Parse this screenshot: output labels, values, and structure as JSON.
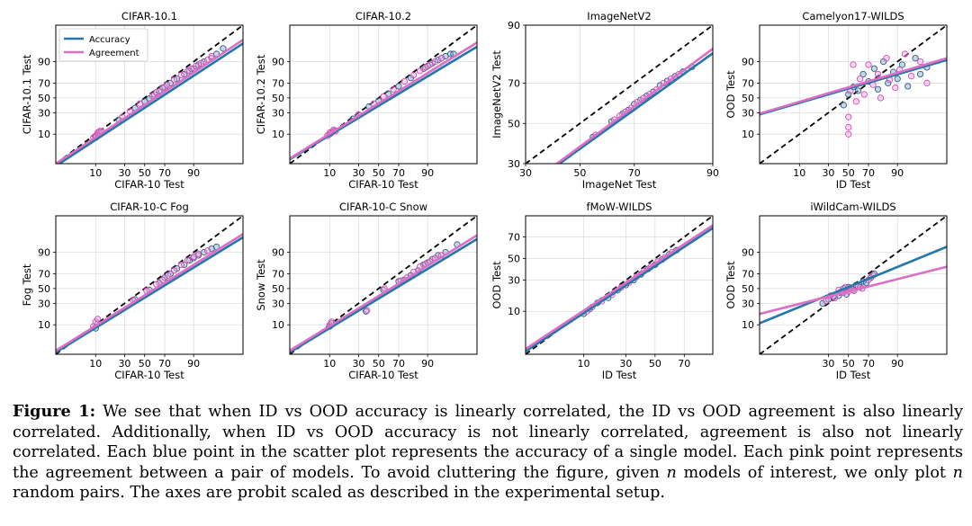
{
  "legend": {
    "accuracy": "Accuracy",
    "agreement": "Agreement"
  },
  "colors": {
    "accuracy": "#2477ab",
    "agreement": "#db6fc4",
    "diag": "#000000",
    "grid": "#dddddd",
    "point_edge_acc": "#2a4d6e",
    "point_edge_agr": "#d23ab5"
  },
  "caption": {
    "label": "Figure 1:",
    "t1": " We see that when ID vs OOD accuracy is linearly correlated, the ID vs OOD agreement is also linearly correlated. Additionally, when ID vs OOD accuracy is not linearly correlated, agreement is also not linearly correlated. Each blue point in the scatter plot represents the accuracy of a single model. Each pink point represents the agreement between a pair of models. To avoid cluttering the figure, given ",
    "n1": "n",
    "t2": " models of interest, we only plot ",
    "n2": "n",
    "t3": " random pairs. The axes are probit scaled as described in the experimental setup."
  },
  "chart_data": [
    {
      "title": "CIFAR-10.1",
      "type": "scatter",
      "xlabel": "CIFAR-10 Test",
      "ylabel": "CIFAR-10.1 Test",
      "xlim": [
        1,
        99.5
      ],
      "ylim": [
        1,
        99.5
      ],
      "xticks": [
        10,
        30,
        50,
        70,
        90
      ],
      "yticks": [
        10,
        30,
        50,
        70,
        90
      ],
      "legend": true,
      "diag": true,
      "accuracy_fit": [
        [
          1,
          0.8
        ],
        [
          99.5,
          97.3
        ]
      ],
      "agreement_fit": [
        [
          1,
          1.0
        ],
        [
          99.5,
          98.0
        ]
      ],
      "accuracy_points": [
        [
          10,
          8
        ],
        [
          11,
          10
        ],
        [
          12,
          11
        ],
        [
          25,
          22
        ],
        [
          40,
          36
        ],
        [
          50,
          45
        ],
        [
          55,
          49
        ],
        [
          60,
          55
        ],
        [
          65,
          60
        ],
        [
          70,
          65
        ],
        [
          75,
          70
        ],
        [
          80,
          75
        ],
        [
          85,
          80
        ],
        [
          88,
          83
        ],
        [
          90,
          85
        ],
        [
          92,
          88
        ],
        [
          94,
          90
        ],
        [
          96,
          92
        ],
        [
          97,
          94
        ],
        [
          98,
          96
        ]
      ],
      "agreement_points": [
        [
          9,
          8
        ],
        [
          10,
          9
        ],
        [
          11,
          11
        ],
        [
          12,
          12
        ],
        [
          13,
          12
        ],
        [
          28,
          25
        ],
        [
          35,
          32
        ],
        [
          45,
          42
        ],
        [
          58,
          53
        ],
        [
          62,
          58
        ],
        [
          68,
          64
        ],
        [
          72,
          68
        ],
        [
          78,
          74
        ],
        [
          83,
          79
        ],
        [
          87,
          83
        ],
        [
          89,
          85
        ],
        [
          91,
          87
        ],
        [
          93,
          89
        ],
        [
          95,
          91
        ],
        [
          96,
          93
        ]
      ]
    },
    {
      "title": "CIFAR-10.2",
      "type": "scatter",
      "xlabel": "CIFAR-10 Test",
      "ylabel": "CIFAR-10.2 Test",
      "xlim": [
        1,
        99.5
      ],
      "ylim": [
        1,
        99.5
      ],
      "xticks": [
        10,
        30,
        50,
        70,
        90
      ],
      "yticks": [
        10,
        30,
        50,
        70,
        90
      ],
      "legend": false,
      "diag": true,
      "accuracy_fit": [
        [
          1,
          1.5
        ],
        [
          99.5,
          96.5
        ]
      ],
      "agreement_fit": [
        [
          1,
          1.6
        ],
        [
          99.5,
          97.5
        ]
      ],
      "accuracy_points": [
        [
          10,
          10
        ],
        [
          12,
          12
        ],
        [
          25,
          23
        ],
        [
          40,
          38
        ],
        [
          50,
          46
        ],
        [
          60,
          56
        ],
        [
          70,
          66
        ],
        [
          80,
          76
        ],
        [
          88,
          85
        ],
        [
          90,
          87
        ],
        [
          92,
          89
        ],
        [
          94,
          91
        ],
        [
          95,
          92
        ],
        [
          96,
          93
        ],
        [
          97,
          94
        ],
        [
          97.5,
          94
        ]
      ],
      "agreement_points": [
        [
          9,
          9
        ],
        [
          10,
          11
        ],
        [
          11,
          11
        ],
        [
          12,
          13
        ],
        [
          13,
          12
        ],
        [
          30,
          28
        ],
        [
          45,
          42
        ],
        [
          55,
          52
        ],
        [
          65,
          62
        ],
        [
          75,
          72
        ],
        [
          82,
          79
        ],
        [
          86,
          83
        ],
        [
          89,
          86
        ],
        [
          91,
          88
        ],
        [
          93,
          90
        ],
        [
          95,
          92
        ]
      ]
    },
    {
      "title": "ImageNetV2",
      "type": "scatter",
      "xlabel": "ImageNet Test",
      "ylabel": "ImageNetV2 Test",
      "xlim": [
        30,
        90
      ],
      "ylim": [
        30,
        90
      ],
      "xticks": [
        30,
        50,
        70,
        90
      ],
      "yticks": [
        30,
        50,
        70,
        90
      ],
      "legend": false,
      "diag": true,
      "accuracy_fit": [
        [
          30,
          20
        ],
        [
          90,
          82
        ]
      ],
      "agreement_fit": [
        [
          30,
          20.5
        ],
        [
          90,
          83.5
        ]
      ],
      "accuracy_points": [
        [
          55,
          43
        ],
        [
          62,
          51
        ],
        [
          66,
          55
        ],
        [
          68,
          57
        ],
        [
          70,
          60
        ],
        [
          72,
          62
        ],
        [
          74,
          64
        ],
        [
          76,
          66
        ],
        [
          78,
          69
        ],
        [
          80,
          71
        ],
        [
          82,
          73
        ],
        [
          84,
          75
        ],
        [
          86,
          77
        ]
      ],
      "agreement_points": [
        [
          56,
          44
        ],
        [
          63,
          52
        ],
        [
          65,
          54
        ],
        [
          67,
          56
        ],
        [
          69,
          58
        ],
        [
          71,
          61
        ],
        [
          73,
          63
        ],
        [
          75,
          65
        ],
        [
          77,
          67
        ],
        [
          79,
          70
        ],
        [
          81,
          72
        ],
        [
          83,
          74
        ]
      ]
    },
    {
      "title": "Camelyon17-WILDS",
      "type": "scatter",
      "xlabel": "ID Test",
      "ylabel": "OOD Test",
      "xlim": [
        1,
        99.5
      ],
      "ylim": [
        1,
        99.5
      ],
      "xticks": [
        10,
        30,
        50,
        70,
        90
      ],
      "yticks": [
        10,
        30,
        50,
        70,
        90
      ],
      "legend": false,
      "diag": true,
      "accuracy_fit": [
        [
          1,
          28
        ],
        [
          99.5,
          91
        ]
      ],
      "agreement_fit": [
        [
          1,
          29
        ],
        [
          99.5,
          92
        ]
      ],
      "accuracy_points": [
        [
          45,
          40
        ],
        [
          50,
          55
        ],
        [
          55,
          65
        ],
        [
          60,
          60
        ],
        [
          65,
          80
        ],
        [
          70,
          72
        ],
        [
          75,
          85
        ],
        [
          78,
          62
        ],
        [
          82,
          90
        ],
        [
          85,
          70
        ],
        [
          88,
          82
        ],
        [
          90,
          75
        ],
        [
          92,
          88
        ],
        [
          94,
          66
        ],
        [
          96,
          92
        ],
        [
          97,
          80
        ],
        [
          98,
          86
        ]
      ],
      "agreement_points": [
        [
          50,
          10
        ],
        [
          50,
          15
        ],
        [
          50,
          25
        ],
        [
          52,
          60
        ],
        [
          55,
          88
        ],
        [
          58,
          45
        ],
        [
          62,
          75
        ],
        [
          66,
          55
        ],
        [
          70,
          88
        ],
        [
          74,
          68
        ],
        [
          78,
          80
        ],
        [
          80,
          50
        ],
        [
          84,
          92
        ],
        [
          86,
          74
        ],
        [
          89,
          64
        ],
        [
          91,
          84
        ],
        [
          93,
          94
        ],
        [
          95,
          78
        ],
        [
          97,
          90
        ],
        [
          98,
          70
        ]
      ]
    },
    {
      "title": "CIFAR-10-C Fog",
      "type": "scatter",
      "xlabel": "CIFAR-10 Test",
      "ylabel": "Fog Test",
      "xlim": [
        1,
        99.5
      ],
      "ylim": [
        1,
        99.5
      ],
      "xticks": [
        10,
        30,
        50,
        70,
        90
      ],
      "yticks": [
        10,
        30,
        50,
        70,
        90
      ],
      "legend": false,
      "diag": true,
      "accuracy_fit": [
        [
          1,
          1.2
        ],
        [
          99.5,
          96.5
        ]
      ],
      "agreement_fit": [
        [
          1,
          1.4
        ],
        [
          99.5,
          97.3
        ]
      ],
      "accuracy_points": [
        [
          10,
          8
        ],
        [
          11,
          11
        ],
        [
          40,
          35
        ],
        [
          55,
          48
        ],
        [
          65,
          58
        ],
        [
          70,
          65
        ],
        [
          75,
          70
        ],
        [
          80,
          76
        ],
        [
          85,
          80
        ],
        [
          88,
          84
        ],
        [
          90,
          86
        ],
        [
          92,
          88
        ],
        [
          94,
          90
        ],
        [
          96,
          92
        ],
        [
          97,
          93
        ]
      ],
      "agreement_points": [
        [
          9,
          9
        ],
        [
          10,
          12
        ],
        [
          11,
          14
        ],
        [
          38,
          34
        ],
        [
          52,
          47
        ],
        [
          62,
          56
        ],
        [
          68,
          62
        ],
        [
          73,
          68
        ],
        [
          78,
          74
        ],
        [
          83,
          80
        ],
        [
          87,
          84
        ],
        [
          90,
          87
        ],
        [
          92,
          89
        ],
        [
          95,
          91
        ]
      ]
    },
    {
      "title": "CIFAR-10-C Snow",
      "type": "scatter",
      "xlabel": "CIFAR-10 Test",
      "ylabel": "Snow Test",
      "xlim": [
        1,
        99.5
      ],
      "ylim": [
        1,
        99.5
      ],
      "xticks": [
        10,
        30,
        50,
        70,
        90
      ],
      "yticks": [
        10,
        30,
        50,
        70,
        90
      ],
      "legend": false,
      "diag": true,
      "accuracy_fit": [
        [
          1,
          1.2
        ],
        [
          99.5,
          96
        ]
      ],
      "agreement_fit": [
        [
          1,
          1.4
        ],
        [
          99.5,
          97
        ]
      ],
      "accuracy_points": [
        [
          10,
          9
        ],
        [
          11,
          11
        ],
        [
          37,
          21
        ],
        [
          55,
          48
        ],
        [
          70,
          60
        ],
        [
          75,
          62
        ],
        [
          80,
          68
        ],
        [
          85,
          74
        ],
        [
          88,
          80
        ],
        [
          90,
          82
        ],
        [
          92,
          85
        ],
        [
          94,
          88
        ],
        [
          96,
          90
        ],
        [
          98,
          94
        ]
      ],
      "agreement_points": [
        [
          10,
          10
        ],
        [
          11,
          12
        ],
        [
          38,
          22
        ],
        [
          56,
          50
        ],
        [
          72,
          61
        ],
        [
          77,
          65
        ],
        [
          82,
          72
        ],
        [
          86,
          78
        ],
        [
          89,
          81
        ],
        [
          91,
          83
        ],
        [
          93,
          86
        ],
        [
          95,
          88
        ]
      ]
    },
    {
      "title": "fMoW-WILDS",
      "type": "scatter",
      "xlabel": "ID Test",
      "ylabel": "OOD Test",
      "xlim": [
        1,
        85
      ],
      "ylim": [
        1,
        85
      ],
      "xticks": [
        10,
        30,
        50,
        70
      ],
      "yticks": [
        10,
        30,
        50,
        70
      ],
      "legend": false,
      "diag": true,
      "accuracy_fit": [
        [
          1,
          1.2
        ],
        [
          85,
          77
        ]
      ],
      "agreement_fit": [
        [
          1,
          1.4
        ],
        [
          85,
          79
        ]
      ],
      "accuracy_points": [
        [
          10,
          9
        ],
        [
          12,
          11
        ],
        [
          15,
          14
        ],
        [
          20,
          17
        ],
        [
          25,
          22
        ],
        [
          30,
          26
        ],
        [
          35,
          30
        ],
        [
          40,
          35
        ],
        [
          45,
          40
        ],
        [
          50,
          44
        ],
        [
          55,
          49
        ],
        [
          60,
          54
        ],
        [
          65,
          58
        ]
      ],
      "agreement_points": [
        [
          11,
          10
        ],
        [
          13,
          12
        ],
        [
          17,
          15
        ],
        [
          22,
          19
        ],
        [
          27,
          24
        ],
        [
          32,
          28
        ],
        [
          37,
          33
        ],
        [
          42,
          38
        ],
        [
          47,
          42
        ],
        [
          52,
          47
        ],
        [
          57,
          51
        ],
        [
          62,
          56
        ]
      ]
    },
    {
      "title": "iWildCam-WILDS",
      "type": "scatter",
      "xlabel": "ID Test",
      "ylabel": "OOD Test",
      "xlim": [
        1,
        99.5
      ],
      "ylim": [
        1,
        99.5
      ],
      "xticks": [
        30,
        50,
        70,
        90
      ],
      "yticks": [
        10,
        30,
        50,
        70,
        90
      ],
      "legend": false,
      "diag": true,
      "accuracy_fit": [
        [
          1,
          11
        ],
        [
          99.5,
          93
        ]
      ],
      "agreement_fit": [
        [
          1,
          18.5
        ],
        [
          99.5,
          78
        ]
      ],
      "accuracy_points": [
        [
          25,
          30
        ],
        [
          30,
          35
        ],
        [
          35,
          38
        ],
        [
          40,
          40
        ],
        [
          42,
          45
        ],
        [
          45,
          50
        ],
        [
          48,
          42
        ],
        [
          50,
          52
        ],
        [
          55,
          48
        ],
        [
          58,
          55
        ],
        [
          62,
          52
        ],
        [
          65,
          60
        ],
        [
          68,
          58
        ],
        [
          72,
          65
        ],
        [
          75,
          70
        ]
      ],
      "agreement_points": [
        [
          28,
          33
        ],
        [
          32,
          40
        ],
        [
          36,
          37
        ],
        [
          40,
          48
        ],
        [
          44,
          44
        ],
        [
          47,
          52
        ],
        [
          50,
          46
        ],
        [
          53,
          50
        ],
        [
          56,
          47
        ],
        [
          60,
          53
        ],
        [
          64,
          50
        ],
        [
          70,
          62
        ],
        [
          74,
          68
        ]
      ]
    }
  ]
}
